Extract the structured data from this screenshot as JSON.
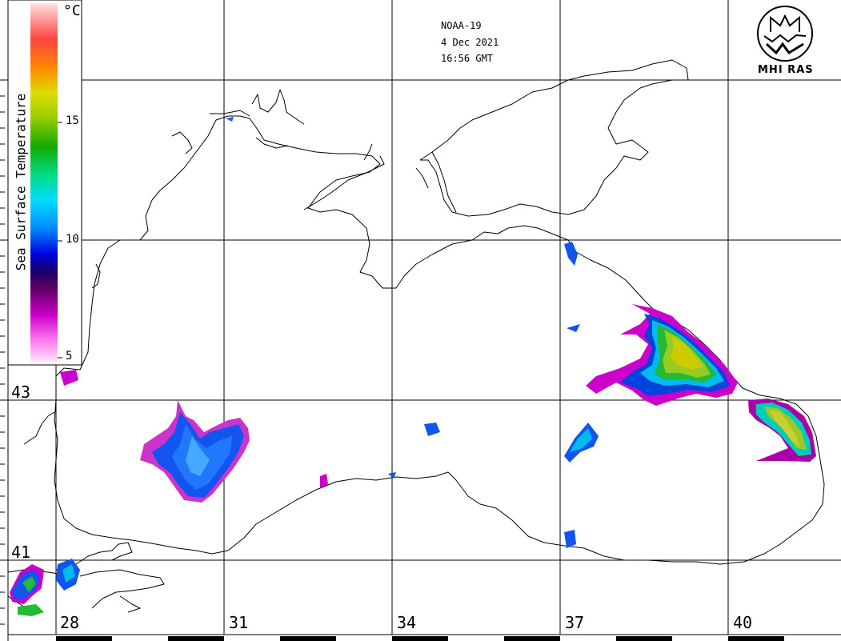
{
  "header": {
    "satellite": "NOAA-19",
    "date": "4 Dec 2021",
    "time": "16:56 GMT"
  },
  "logo": {
    "text": "MHI RAS",
    "icon": "mhi-ras-emblem-icon"
  },
  "colorbar": {
    "title": "Sea Surface Temperature",
    "unit": "°C",
    "ticks": [
      "15",
      "10",
      "5"
    ],
    "tick_values": [
      15,
      10,
      5
    ],
    "range": [
      5,
      20
    ],
    "colors": [
      "#ffe0f6",
      "#ff66e6",
      "#cc00cc",
      "#660066",
      "#0000cc",
      "#0088ff",
      "#00e0ff",
      "#00cc66",
      "#22aa00",
      "#99cc00",
      "#cccc00",
      "#ff9900",
      "#ff5533",
      "#ff8888",
      "#ffdddd"
    ]
  },
  "axes": {
    "latitude_labels": [
      "43",
      "41"
    ],
    "longitude_labels": [
      "28",
      "31",
      "34",
      "37",
      "40"
    ]
  }
}
